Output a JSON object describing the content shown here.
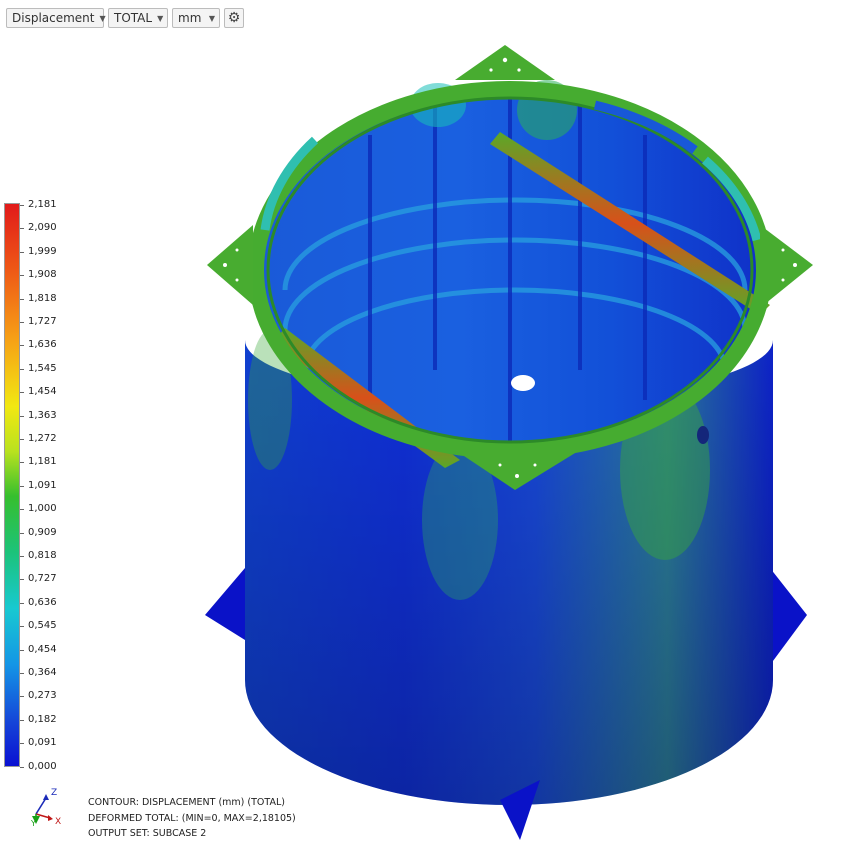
{
  "toolbar": {
    "result_type": "Displacement",
    "component": "TOTAL",
    "unit": "mm",
    "settings_icon": "gear-icon"
  },
  "legend": {
    "labels": [
      "2,181",
      "2,090",
      "1,999",
      "1,908",
      "1,818",
      "1,727",
      "1,636",
      "1,545",
      "1,454",
      "1,363",
      "1,272",
      "1,181",
      "1,091",
      "1,000",
      "0,909",
      "0,818",
      "0,727",
      "0,636",
      "0,545",
      "0,454",
      "0,364",
      "0,273",
      "0,182",
      "0,091",
      "0,000"
    ],
    "colors": {
      "max": "#e11a1a",
      "mid": "#36bf2e",
      "min": "#0a10d2"
    }
  },
  "triad": {
    "z": "Z",
    "y": "Y",
    "x": "X"
  },
  "info": {
    "line1": "CONTOUR: DISPLACEMENT (mm) (TOTAL)",
    "line2": "DEFORMED TOTAL: (MIN=0, MAX=2,18105)",
    "line3": "OUTPUT SET: SUBCASE 2"
  }
}
